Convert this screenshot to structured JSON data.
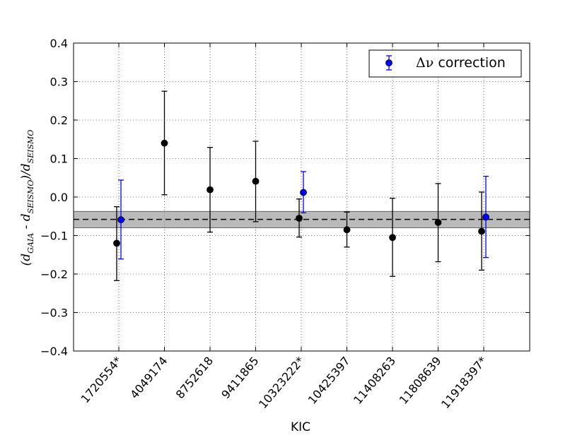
{
  "chart_data": {
    "type": "scatter",
    "xlabel": "KIC",
    "ylabel": {
      "prefix": "(d",
      "gaia_sub": "GAIA",
      "mid": " - d",
      "seismo_sub": "SEISMO",
      "close_div": ")/d",
      "seismo_sub2": "SEISMO"
    },
    "categories": [
      "1720554*",
      "4049174",
      "8752618",
      "9411865",
      "10323222*",
      "10425397",
      "11408263",
      "11808639",
      "11918397*"
    ],
    "ylim": [
      -0.4,
      0.4
    ],
    "yticks": [
      -0.4,
      -0.3,
      -0.2,
      -0.1,
      0.0,
      0.1,
      0.2,
      0.3,
      0.4
    ],
    "ytick_labels": [
      "−0.4",
      "−0.3",
      "−0.2",
      "−0.1",
      "0.0",
      "0.1",
      "0.2",
      "0.3",
      "0.4"
    ],
    "grid": true,
    "legend": {
      "placement": "top-right",
      "symbol": "Δν",
      "text": " correction"
    },
    "reference_line": {
      "value": -0.058,
      "band": [
        -0.08,
        -0.037
      ],
      "style": "dashed"
    },
    "series": [
      {
        "color": "#000000",
        "points": [
          {
            "category": "1720554*",
            "y": -0.12,
            "lo": -0.217,
            "hi": -0.025
          },
          {
            "category": "4049174",
            "y": 0.14,
            "lo": 0.006,
            "hi": 0.275
          },
          {
            "category": "8752618",
            "y": 0.019,
            "lo": -0.091,
            "hi": 0.129
          },
          {
            "category": "9411865",
            "y": 0.041,
            "lo": -0.064,
            "hi": 0.145
          },
          {
            "category": "10323222*",
            "y": -0.055,
            "lo": -0.104,
            "hi": -0.005
          },
          {
            "category": "10425397",
            "y": -0.085,
            "lo": -0.13,
            "hi": -0.039
          },
          {
            "category": "11408263",
            "y": -0.105,
            "lo": -0.206,
            "hi": -0.003
          },
          {
            "category": "11808639",
            "y": -0.066,
            "lo": -0.168,
            "hi": 0.035
          },
          {
            "category": "11918397*",
            "y": -0.089,
            "lo": -0.19,
            "hi": 0.013
          }
        ]
      },
      {
        "name": "Δν correction",
        "color": "#0000ff",
        "points": [
          {
            "category": "1720554*",
            "y": -0.059,
            "lo": -0.161,
            "hi": 0.044
          },
          {
            "category": "10323222*",
            "y": 0.012,
            "lo": -0.041,
            "hi": 0.066
          },
          {
            "category": "11918397*",
            "y": -0.052,
            "lo": -0.157,
            "hi": 0.054
          }
        ]
      }
    ]
  }
}
